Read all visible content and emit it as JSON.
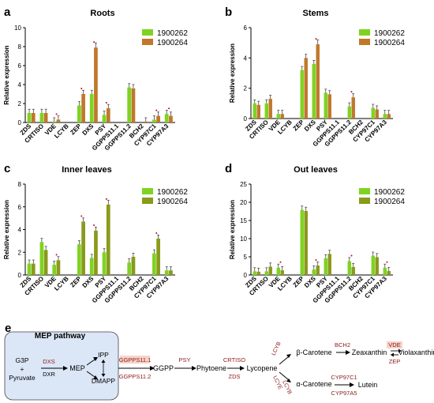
{
  "chart_data": [
    {
      "panel": "a",
      "type": "bar",
      "title": "Roots",
      "ylabel": "Relative expression",
      "ylim": [
        0,
        10
      ],
      "yticks": [
        0,
        2,
        4,
        6,
        8,
        10
      ],
      "categories": [
        "ZDS",
        "CRTISO",
        "VDE",
        "LCYB",
        "ZEP",
        "DXS",
        "PSY",
        "GGPPS11.1",
        "GGPPS11.2",
        "BCH2",
        "CYP97C1",
        "CYP97A3"
      ],
      "series": [
        {
          "name": "1900262",
          "values": [
            1.0,
            1.0,
            0.1,
            0.0,
            1.8,
            3.0,
            0.8,
            0.0,
            3.7,
            0.0,
            0.3,
            0.9
          ]
        },
        {
          "name": "1900264",
          "values": [
            1.0,
            1.0,
            0.3,
            0.0,
            3.0,
            7.9,
            1.5,
            0.0,
            3.6,
            0.1,
            0.7,
            0.7
          ]
        }
      ],
      "colors": [
        "#7ed321",
        "#c0782b"
      ],
      "significant": [
        0,
        0,
        1,
        0,
        1,
        1,
        1,
        0,
        0,
        0,
        1,
        1
      ],
      "legend": "top-right"
    },
    {
      "panel": "b",
      "type": "bar",
      "title": "Stems",
      "ylabel": "Relative expression",
      "ylim": [
        0,
        6
      ],
      "yticks": [
        0,
        2,
        4,
        6
      ],
      "categories": [
        "ZDS",
        "CRTISO",
        "VDE",
        "LCYB",
        "ZEP",
        "DXS",
        "PSY",
        "GGPPS11.1",
        "GGPPS11.2",
        "BCH2",
        "CYP97C1",
        "CYP97A3"
      ],
      "series": [
        {
          "name": "1900262",
          "values": [
            1.0,
            1.0,
            0.3,
            0.0,
            3.2,
            3.6,
            1.7,
            0.0,
            0.8,
            0.0,
            0.7,
            0.3
          ]
        },
        {
          "name": "1900264",
          "values": [
            0.9,
            1.3,
            0.3,
            0.0,
            4.0,
            4.9,
            1.6,
            0.0,
            1.4,
            0.0,
            0.6,
            0.3
          ]
        }
      ],
      "colors": [
        "#7ed321",
        "#c0782b"
      ],
      "significant": [
        0,
        0,
        0,
        0,
        0,
        1,
        0,
        0,
        1,
        0,
        0,
        0
      ],
      "legend": "top-right"
    },
    {
      "panel": "c",
      "type": "bar",
      "title": "Inner leaves",
      "ylabel": "Relative expression",
      "ylim": [
        0,
        8
      ],
      "yticks": [
        0,
        2,
        4,
        6,
        8
      ],
      "categories": [
        "ZDS",
        "CRTISO",
        "VDE",
        "LCYB",
        "ZEP",
        "DXS",
        "PSY",
        "GGPPS11.1",
        "GGPPS11.2",
        "BCH2",
        "CYP97C1",
        "CYP97A3"
      ],
      "series": [
        {
          "name": "1900262",
          "values": [
            1.0,
            2.9,
            0.9,
            0.0,
            2.7,
            1.5,
            2.0,
            0.0,
            1.1,
            0.0,
            1.9,
            0.4
          ]
        },
        {
          "name": "1900264",
          "values": [
            1.0,
            2.2,
            1.3,
            0.0,
            4.7,
            3.9,
            6.2,
            0.0,
            1.6,
            0.0,
            3.2,
            0.4
          ]
        }
      ],
      "colors": [
        "#7ed321",
        "#8a9a1b"
      ],
      "significant": [
        0,
        0,
        1,
        0,
        1,
        1,
        1,
        0,
        0,
        0,
        1,
        0
      ],
      "legend": "top-right"
    },
    {
      "panel": "d",
      "type": "bar",
      "title": "Out leaves",
      "ylabel": "Relative expression",
      "ylim": [
        0,
        25
      ],
      "yticks": [
        0,
        5,
        10,
        15,
        20,
        25
      ],
      "categories": [
        "ZDS",
        "CRTISO",
        "VDE",
        "LCYB",
        "ZEP",
        "DXS",
        "PSY",
        "GGPPS11.1",
        "GGPPS11.2",
        "BCH2",
        "CYP97C1",
        "CYP97A3"
      ],
      "series": [
        {
          "name": "1900262",
          "values": [
            1.0,
            1.0,
            2.0,
            0.0,
            17.9,
            1.5,
            4.6,
            0.0,
            3.8,
            0.0,
            5.3,
            2.0
          ]
        },
        {
          "name": "1900264",
          "values": [
            0.9,
            2.3,
            1.3,
            0.0,
            17.6,
            2.6,
            5.8,
            0.0,
            2.2,
            0.0,
            4.9,
            1.1
          ]
        }
      ],
      "colors": [
        "#7ed321",
        "#8a9a1b"
      ],
      "significant": [
        0,
        0,
        1,
        0,
        0,
        1,
        0,
        0,
        1,
        0,
        0,
        1
      ],
      "legend": "top-right"
    }
  ],
  "pathway": {
    "panel": "e",
    "mep_title": "MEP pathway",
    "g3p": "G3P",
    "plus": "+",
    "pyruvate": "Pyruvate",
    "dxs": "DXS",
    "dxr": "DXR",
    "mep": "MEP",
    "ipp": "IPP",
    "dmapp": "DMAPP",
    "ggpps11_1": "GGPPS11.1",
    "ggpps11_2": "GGPPS11.2",
    "ggpp": "GGPP",
    "psy": "PSY",
    "phytoene": "Phytoene",
    "crtiso": "CRTISO",
    "zds": "ZDS",
    "lycopene": "Lycopene",
    "lcyb1": "LCYB",
    "lcye": "LCYE",
    "lcyb2": "LCYB",
    "beta_carotene": "β-Carotene",
    "bch2": "BCH2",
    "zeaxanthin": "Zeaxanthin",
    "vde": "VDE",
    "zep": "ZEP",
    "violaxanthin": "Violaxanthin",
    "alpha_carotene": "α-Carotene",
    "cyp97c1": "CYP97C1",
    "cyp97a5": "CYP97A5",
    "lutein": "Lutein"
  },
  "colors": {
    "enzyme": "#8b1a1a",
    "enzyme_box": "#f6d3c9",
    "mep_box": "#dbe6f7",
    "axis": "#000000"
  }
}
